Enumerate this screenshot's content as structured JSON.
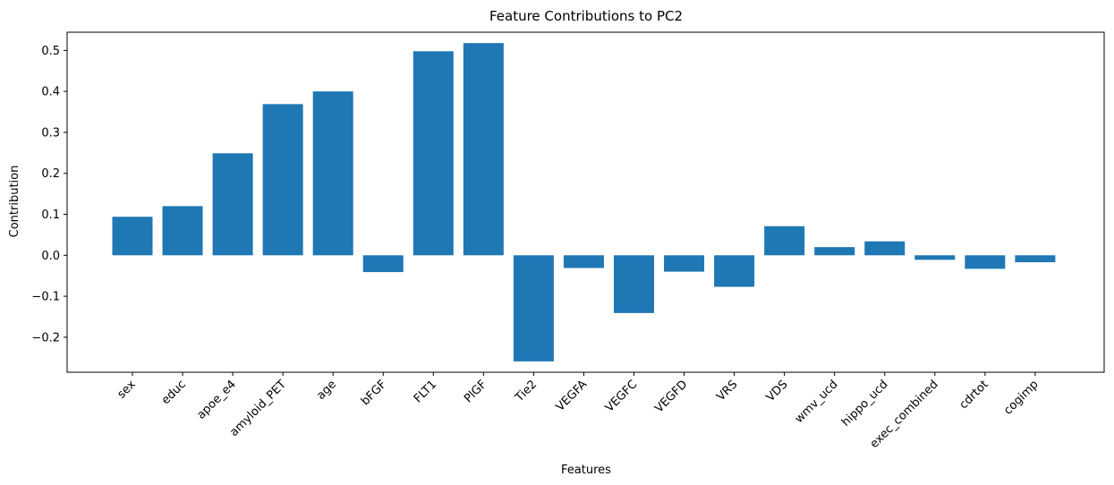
{
  "chart_data": {
    "type": "bar",
    "title": "Feature Contributions to PC2",
    "xlabel": "Features",
    "ylabel": "Contribution",
    "categories": [
      "sex",
      "educ",
      "apoe_e4",
      "amyloid_PET",
      "age",
      "bFGF",
      "FLT1",
      "PlGF",
      "Tie2",
      "VEGFA",
      "VEGFC",
      "VEGFD",
      "VRS",
      "VDS",
      "wmv_ucd",
      "hippo_ucd",
      "exec_combined",
      "cdrtot",
      "cogimp"
    ],
    "values": [
      0.094,
      0.12,
      0.249,
      0.369,
      0.4,
      -0.041,
      0.498,
      0.518,
      -0.259,
      -0.031,
      -0.141,
      -0.04,
      -0.077,
      0.071,
      0.02,
      0.034,
      -0.011,
      -0.033,
      -0.017
    ],
    "yticks": [
      -0.2,
      -0.1,
      0.0,
      0.1,
      0.2,
      0.3,
      0.4,
      0.5
    ],
    "ytick_labels": [
      "−0.2",
      "−0.1",
      "0.0",
      "0.1",
      "0.2",
      "0.3",
      "0.4",
      "0.5"
    ],
    "ylim": [
      -0.2855,
      0.5445
    ],
    "grid": false,
    "bar_color": "#1f77b4"
  }
}
